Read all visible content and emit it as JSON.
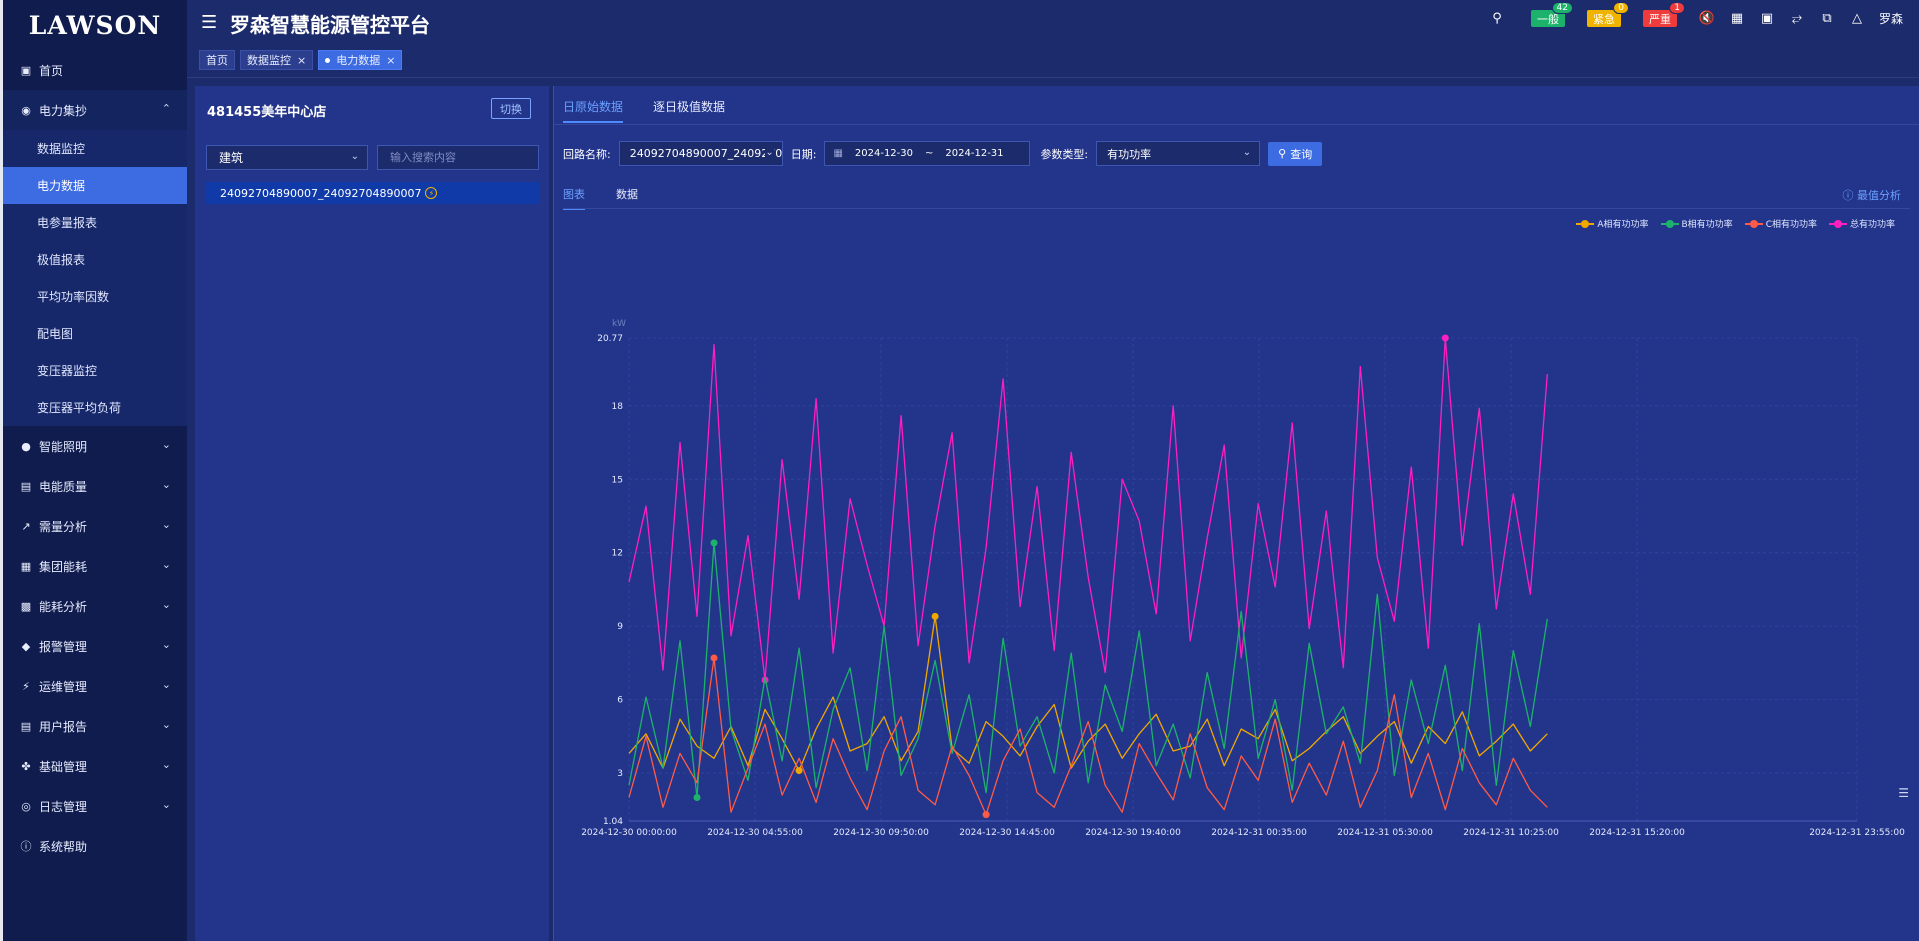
{
  "brand": "LAWSON",
  "app_title": "罗森智慧能源管控平台",
  "sidebar": {
    "home": "首页",
    "power_group": "电力集抄",
    "power_sub": [
      "数据监控",
      "电力数据",
      "电参量报表",
      "极值报表",
      "平均功率因数",
      "配电图",
      "变压器监控",
      "变压器平均负荷"
    ],
    "groups": [
      "智能照明",
      "电能质量",
      "需量分析",
      "集团能耗",
      "能耗分析",
      "报警管理",
      "运维管理",
      "用户报告",
      "基础管理",
      "日志管理"
    ],
    "help": "系统帮助"
  },
  "tags": [
    "首页",
    "数据监控",
    "电力数据"
  ],
  "top_right": {
    "general_label": "一般",
    "general_count": "42",
    "urgent_label": "紧急",
    "urgent_count": "0",
    "severe_label": "严重",
    "severe_count": "1",
    "user": "罗森"
  },
  "left_panel": {
    "store": "481455美年中心店",
    "switch": "切换",
    "select_value": "建筑",
    "search_placeholder": "输入搜索内容",
    "tree_item": "24092704890007_24092704890007"
  },
  "main": {
    "tabs": [
      "日原始数据",
      "逐日极值数据"
    ],
    "loop_label": "回路名称:",
    "loop_value": "24092704890007_240927048900",
    "date_label": "日期:",
    "date_start": "2024-12-30",
    "date_sep": "~",
    "date_end": "2024-12-31",
    "param_label": "参数类型:",
    "param_value": "有功功率",
    "query": "查询",
    "subtabs": [
      "图表",
      "数据"
    ],
    "peak_link": "最值分析"
  },
  "colors": {
    "A": "#f0a800",
    "B": "#1db26b",
    "C": "#ff5a47",
    "T": "#ff1fc0"
  },
  "chart_data": {
    "type": "line",
    "ylabel": "kW",
    "ylim": [
      1.04,
      20.77
    ],
    "yticks": [
      "20.77",
      "18",
      "15",
      "12",
      "9",
      "6",
      "3",
      "1.04"
    ],
    "x_ticks": [
      "2024-12-30 00:00:00",
      "2024-12-30 04:55:00",
      "2024-12-30 09:50:00",
      "2024-12-30 14:45:00",
      "2024-12-30 19:40:00",
      "2024-12-31 00:35:00",
      "2024-12-31 05:30:00",
      "2024-12-31 10:25:00",
      "2024-12-31 15:20:00",
      "2024-12-31 23:55:00"
    ],
    "series": [
      {
        "name": "A相有功功率",
        "values": [
          3.8,
          4.6,
          3.2,
          5.2,
          4.1,
          3.6,
          4.9,
          3.3,
          5.6,
          4.4,
          3.1,
          4.8,
          6.1,
          3.9,
          4.2,
          5.3,
          3.5,
          4.7,
          9.4,
          4.0,
          3.4,
          5.1,
          4.5,
          3.7,
          4.9,
          5.8,
          3.2,
          4.3,
          5.0,
          3.6,
          4.6,
          5.4,
          3.9,
          4.1,
          5.2,
          3.3,
          4.8,
          4.4,
          5.6,
          3.5,
          4.0,
          4.7,
          5.3,
          3.8,
          4.5,
          5.1,
          3.4,
          4.9,
          4.2,
          5.5,
          3.7,
          4.3,
          5.0,
          3.9,
          4.6
        ]
      },
      {
        "name": "B相有功功率",
        "values": [
          2.5,
          6.1,
          3.2,
          8.4,
          2.0,
          12.4,
          4.8,
          2.7,
          6.9,
          3.5,
          8.1,
          2.4,
          5.6,
          7.3,
          3.1,
          9.0,
          2.9,
          4.4,
          7.6,
          3.8,
          6.2,
          2.2,
          8.5,
          4.1,
          5.3,
          3.0,
          7.9,
          2.6,
          6.6,
          4.7,
          8.8,
          3.3,
          5.0,
          2.8,
          7.1,
          4.0,
          9.6,
          3.6,
          6.0,
          2.3,
          8.3,
          4.6,
          5.7,
          3.4,
          10.3,
          2.9,
          6.8,
          4.2,
          7.4,
          3.1,
          9.1,
          2.5,
          8.0,
          4.9,
          9.3
        ]
      },
      {
        "name": "C相有功功率",
        "values": [
          2.0,
          4.5,
          1.6,
          3.8,
          2.6,
          7.7,
          1.4,
          3.2,
          5.0,
          2.1,
          3.6,
          1.8,
          4.4,
          2.8,
          1.5,
          3.9,
          5.3,
          2.3,
          1.7,
          4.1,
          2.9,
          1.3,
          3.5,
          4.8,
          2.2,
          1.6,
          3.3,
          5.1,
          2.5,
          1.4,
          4.2,
          3.0,
          1.9,
          4.6,
          2.4,
          1.5,
          3.7,
          2.7,
          5.2,
          1.8,
          3.4,
          2.1,
          4.3,
          1.6,
          3.1,
          6.2,
          2.0,
          3.8,
          1.5,
          4.0,
          2.6,
          1.7,
          3.6,
          2.3,
          1.6
        ]
      },
      {
        "name": "总有功功率",
        "values": [
          10.8,
          13.9,
          7.2,
          16.5,
          9.4,
          20.5,
          8.6,
          12.7,
          6.8,
          15.8,
          10.1,
          18.3,
          7.9,
          14.2,
          11.5,
          9.0,
          17.6,
          8.2,
          13.1,
          16.9,
          7.5,
          12.2,
          19.1,
          9.8,
          14.7,
          8.0,
          16.1,
          11.0,
          7.1,
          15.0,
          13.3,
          9.5,
          18.0,
          8.4,
          12.6,
          16.4,
          7.7,
          14.0,
          10.6,
          17.3,
          8.9,
          13.7,
          7.3,
          19.6,
          11.8,
          9.2,
          15.5,
          8.1,
          20.77,
          12.3,
          17.9,
          9.7,
          14.4,
          10.3,
          19.3
        ]
      }
    ]
  }
}
